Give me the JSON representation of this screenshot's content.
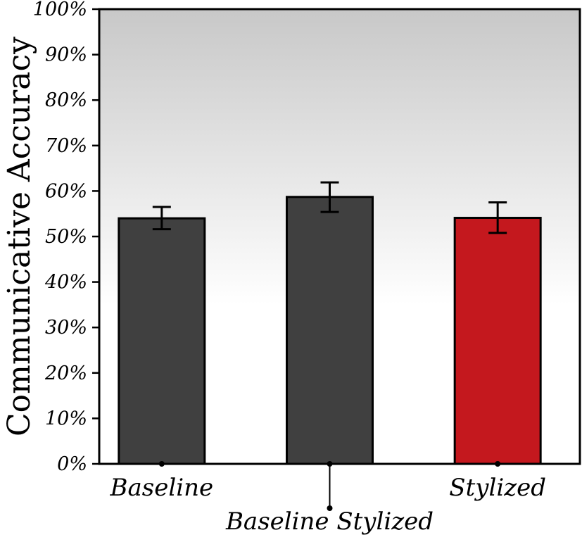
{
  "chart_data": {
    "type": "bar",
    "title": "",
    "xlabel": "",
    "ylabel": "Communicative Accuracy",
    "ylim": [
      0,
      100
    ],
    "yticks": [
      "0%",
      "10%",
      "20%",
      "30%",
      "40%",
      "50%",
      "60%",
      "70%",
      "80%",
      "90%",
      "100%"
    ],
    "categories": [
      "Baseline",
      "Baseline Stylized",
      "Stylized"
    ],
    "values": [
      54,
      58.7,
      54.1
    ],
    "error_low": [
      51.6,
      55.4,
      50.8
    ],
    "error_high": [
      56.5,
      61.9,
      57.5
    ],
    "bar_colors": [
      "#404040",
      "#404040",
      "#c4181e"
    ],
    "background": "gradient gray (top) to white (~35%)",
    "grid": false,
    "legend": "none"
  }
}
